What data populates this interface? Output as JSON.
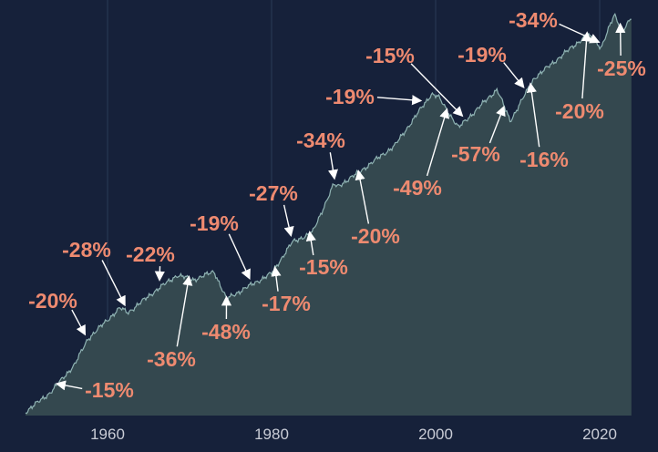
{
  "chart_data": {
    "type": "area",
    "title": "",
    "xlabel": "",
    "ylabel": "",
    "xlim": [
      1950,
      2024
    ],
    "y_scale": "log",
    "grid": "vertical lines at each labeled decade",
    "x_ticks": [
      "1960",
      "1980",
      "2000",
      "2020"
    ],
    "colors": {
      "background": "#16213a",
      "area_fill": "#34484f",
      "line": "#8fb3b3",
      "annotation": "#ee8a70",
      "arrow": "#ffffff",
      "tick_label": "#c9ccd6",
      "grid": "#2b3a55"
    },
    "annotations": [
      {
        "label": "-15%",
        "year": 1953.5
      },
      {
        "label": "-20%",
        "year": 1957.5
      },
      {
        "label": "-28%",
        "year": 1962.3
      },
      {
        "label": "-22%",
        "year": 1966.5
      },
      {
        "label": "-36%",
        "year": 1970.0
      },
      {
        "label": "-19%",
        "year": 1977.5
      },
      {
        "label": "-48%",
        "year": 1974.5
      },
      {
        "label": "-27%",
        "year": 1982.5
      },
      {
        "label": "-17%",
        "year": 1980.3
      },
      {
        "label": "-15%",
        "year": 1984.5
      },
      {
        "label": "-34%",
        "year": 1987.8
      },
      {
        "label": "-20%",
        "year": 1990.5
      },
      {
        "label": "-19%",
        "year": 1998.5
      },
      {
        "label": "-49%",
        "year": 2001.5
      },
      {
        "label": "-15%",
        "year": 2003.5
      },
      {
        "label": "-57%",
        "year": 2008.5
      },
      {
        "label": "-19%",
        "year": 2011.0
      },
      {
        "label": "-16%",
        "year": 2011.5
      },
      {
        "label": "-20%",
        "year": 2018.5
      },
      {
        "label": "-34%",
        "year": 2020.2
      },
      {
        "label": "-25%",
        "year": 2022.5
      }
    ]
  }
}
